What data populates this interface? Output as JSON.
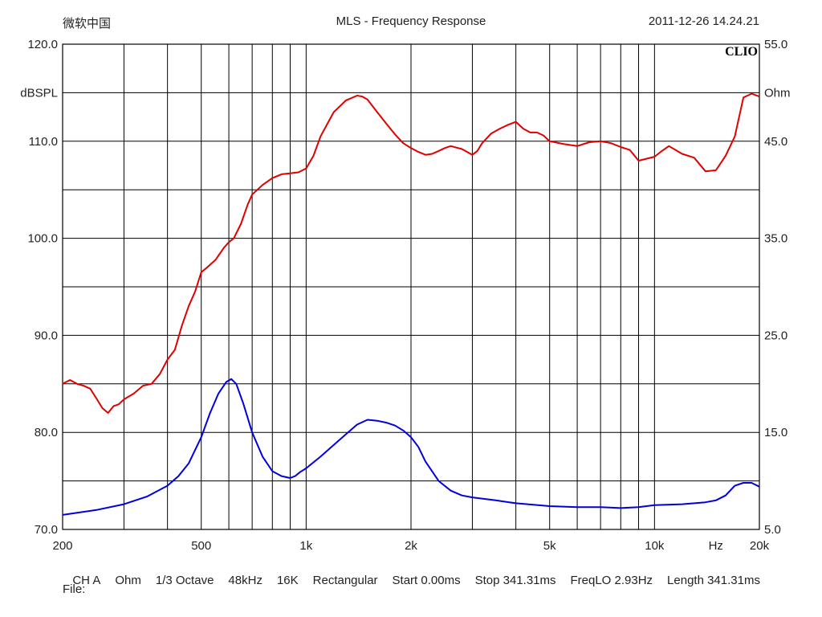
{
  "header": {
    "left": "微软中国",
    "title": "MLS - Frequency Response",
    "timestamp": "2011-12-26 14.24.21"
  },
  "brand": "CLIO",
  "footer": {
    "items": [
      "CH A",
      "Ohm",
      "1/3 Octave",
      "48kHz",
      "16K",
      "Rectangular",
      "Start 0.00ms",
      "Stop 341.31ms",
      "FreqLO 2.93Hz",
      "Length 341.31ms"
    ],
    "file_label": "File:"
  },
  "colors": {
    "spl": "#e00000",
    "impedance": "#0000dd",
    "grid": "#000000"
  },
  "chart_data": {
    "type": "line",
    "title": "MLS - Frequency Response",
    "x_scale": "log",
    "xlim": [
      200,
      20000
    ],
    "x_tick_labels": [
      {
        "v": 200,
        "t": "200"
      },
      {
        "v": 500,
        "t": "500"
      },
      {
        "v": 1000,
        "t": "1k"
      },
      {
        "v": 2000,
        "t": "2k"
      },
      {
        "v": 5000,
        "t": "5k"
      },
      {
        "v": 10000,
        "t": "10k"
      },
      {
        "v": 20000,
        "t": "20k"
      }
    ],
    "x_unit_label": "Hz",
    "x_unit_label_value": 15000,
    "x_gridlines": [
      300,
      400,
      500,
      600,
      700,
      800,
      900,
      1000,
      2000,
      3000,
      4000,
      5000,
      6000,
      7000,
      8000,
      9000,
      10000
    ],
    "y_left": {
      "label": "dBSPL",
      "lim": [
        70,
        120
      ],
      "ticks": [
        70,
        80,
        90,
        100,
        110,
        120
      ],
      "tick_labels": [
        "70.0",
        "80.0",
        "90.0",
        "100.0",
        "110.0",
        "120.0"
      ]
    },
    "y_right": {
      "label": "Ohm",
      "lim": [
        5,
        55
      ],
      "ticks": [
        5,
        15,
        25,
        35,
        45,
        55
      ],
      "tick_labels": [
        "5.0",
        "15.0",
        "25.0",
        "35.0",
        "45.0",
        "55.0"
      ]
    },
    "grid": true,
    "series": [
      {
        "axis": "left",
        "color": "#e00000",
        "x": [
          200,
          210,
          220,
          230,
          240,
          250,
          260,
          270,
          280,
          290,
          300,
          320,
          340,
          360,
          380,
          400,
          420,
          440,
          460,
          480,
          500,
          520,
          550,
          580,
          600,
          620,
          650,
          680,
          700,
          750,
          800,
          850,
          900,
          950,
          1000,
          1050,
          1100,
          1200,
          1300,
          1400,
          1450,
          1500,
          1600,
          1700,
          1800,
          1900,
          2000,
          2100,
          2200,
          2300,
          2400,
          2500,
          2600,
          2800,
          3000,
          3100,
          3200,
          3400,
          3600,
          3800,
          4000,
          4200,
          4400,
          4600,
          4800,
          5000,
          5500,
          6000,
          6500,
          7000,
          7500,
          8000,
          8500,
          9000,
          9500,
          10000,
          10500,
          11000,
          12000,
          13000,
          14000,
          15000,
          16000,
          17000,
          18000,
          19000,
          20000
        ],
        "y": [
          85.0,
          85.4,
          85.0,
          84.8,
          84.5,
          83.5,
          82.5,
          82.0,
          82.7,
          82.9,
          83.4,
          84.0,
          84.8,
          85.0,
          86.0,
          87.5,
          88.5,
          91.0,
          93.0,
          94.5,
          96.5,
          97.0,
          97.8,
          99.0,
          99.6,
          100.0,
          101.5,
          103.5,
          104.5,
          105.5,
          106.2,
          106.6,
          106.7,
          106.8,
          107.2,
          108.5,
          110.5,
          113.0,
          114.2,
          114.7,
          114.6,
          114.3,
          113.0,
          111.8,
          110.7,
          109.8,
          109.3,
          108.9,
          108.6,
          108.7,
          109.0,
          109.3,
          109.5,
          109.2,
          108.6,
          109.0,
          109.8,
          110.8,
          111.3,
          111.7,
          112.0,
          111.3,
          110.9,
          110.9,
          110.6,
          110.0,
          109.7,
          109.5,
          109.9,
          110.0,
          109.8,
          109.4,
          109.1,
          108.0,
          108.2,
          108.4,
          109.0,
          109.5,
          108.7,
          108.3,
          106.9,
          107.0,
          108.5,
          110.5,
          114.5,
          114.9,
          114.6
        ]
      },
      {
        "axis": "right",
        "color": "#0000dd",
        "x": [
          200,
          250,
          300,
          350,
          400,
          430,
          460,
          500,
          530,
          560,
          590,
          610,
          630,
          660,
          700,
          750,
          800,
          850,
          900,
          930,
          960,
          1000,
          1100,
          1200,
          1300,
          1400,
          1500,
          1600,
          1700,
          1800,
          1900,
          2000,
          2100,
          2200,
          2400,
          2600,
          2800,
          3000,
          3500,
          4000,
          5000,
          6000,
          7000,
          8000,
          9000,
          10000,
          12000,
          14000,
          15000,
          16000,
          17000,
          18000,
          19000,
          20000
        ],
        "y": [
          6.5,
          7.0,
          7.6,
          8.4,
          9.5,
          10.5,
          11.8,
          14.5,
          17.0,
          19.0,
          20.2,
          20.5,
          20.0,
          18.0,
          15.0,
          12.5,
          11.0,
          10.5,
          10.3,
          10.5,
          10.9,
          11.3,
          12.5,
          13.7,
          14.8,
          15.8,
          16.3,
          16.2,
          16.0,
          15.7,
          15.2,
          14.5,
          13.5,
          12.0,
          10.0,
          9.0,
          8.5,
          8.3,
          8.0,
          7.7,
          7.4,
          7.3,
          7.3,
          7.2,
          7.3,
          7.5,
          7.6,
          7.8,
          8.0,
          8.5,
          9.5,
          9.8,
          9.8,
          9.4
        ]
      }
    ]
  }
}
